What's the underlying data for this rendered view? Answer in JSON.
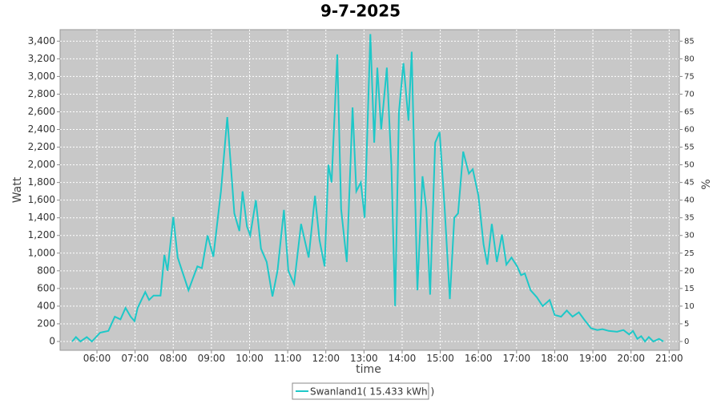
{
  "chart_data": {
    "type": "line",
    "title": "9-7-2025",
    "x_label": "time",
    "y_label": "Watt",
    "y2_label": "%",
    "grid": true,
    "xlim": [
      "05:02",
      "21:16"
    ],
    "xticks": [
      "06:00",
      "07:00",
      "08:00",
      "09:00",
      "10:00",
      "11:00",
      "12:00",
      "13:00",
      "14:00",
      "15:00",
      "16:00",
      "17:00",
      "18:00",
      "19:00",
      "20:00",
      "21:00"
    ],
    "ylim": [
      -100,
      3530
    ],
    "yticks": [
      0,
      200,
      400,
      600,
      800,
      {
        "value": 1000,
        "label": "1,000"
      },
      {
        "value": 1200,
        "label": "1,200"
      },
      {
        "value": 1400,
        "label": "1,400"
      },
      {
        "value": 1600,
        "label": "1,600"
      },
      {
        "value": 1800,
        "label": "1,800"
      },
      {
        "value": 2000,
        "label": "2,000"
      },
      {
        "value": 2200,
        "label": "2,200"
      },
      {
        "value": 2400,
        "label": "2,400"
      },
      {
        "value": 2600,
        "label": "2,600"
      },
      {
        "value": 2800,
        "label": "2,800"
      },
      {
        "value": 3000,
        "label": "3,000"
      },
      {
        "value": 3200,
        "label": "3,200"
      },
      {
        "value": 3400,
        "label": "3,400"
      }
    ],
    "y2lim": [
      -2.5,
      88.25
    ],
    "y2ticks": [
      0,
      5,
      10,
      15,
      20,
      25,
      30,
      35,
      40,
      45,
      50,
      55,
      60,
      65,
      70,
      75,
      80,
      85
    ],
    "x": [
      "05:21",
      "05:27",
      "05:34",
      "05:44",
      "05:52",
      "06:05",
      "06:18",
      "06:28",
      "06:37",
      "06:45",
      "06:53",
      "06:59",
      "07:04",
      "07:16",
      "07:22",
      "07:29",
      "07:40",
      "07:46",
      "07:51",
      "08:00",
      "08:07",
      "08:24",
      "08:38",
      "08:45",
      "08:54",
      "09:03",
      "09:15",
      "09:25",
      "09:36",
      "09:44",
      "09:49",
      "09:56",
      "10:01",
      "10:10",
      "10:18",
      "10:27",
      "10:36",
      "10:44",
      "10:54",
      "11:01",
      "11:10",
      "11:21",
      "11:33",
      "11:43",
      "11:50",
      "11:58",
      "12:04",
      "12:09",
      "12:18",
      "12:24",
      "12:33",
      "12:42",
      "12:48",
      "12:55",
      "13:01",
      "13:10",
      "13:16",
      "13:21",
      "13:27",
      "13:36",
      "13:43",
      "13:49",
      "13:55",
      "14:02",
      "14:10",
      "14:15",
      "14:24",
      "14:32",
      "14:38",
      "14:44",
      "14:52",
      "14:59",
      "15:07",
      "15:15",
      "15:22",
      "15:28",
      "15:36",
      "15:45",
      "15:51",
      "16:00",
      "16:08",
      "16:14",
      "16:21",
      "16:29",
      "16:37",
      "16:44",
      "16:52",
      "17:01",
      "17:07",
      "17:13",
      "17:22",
      "17:32",
      "17:41",
      "17:52",
      "18:00",
      "18:10",
      "18:19",
      "18:28",
      "18:38",
      "18:46",
      "18:57",
      "19:07",
      "19:15",
      "19:25",
      "19:38",
      "19:48",
      "19:57",
      "20:03",
      "20:10",
      "20:16",
      "20:22",
      "20:28",
      "20:35",
      "20:44",
      "20:51"
    ],
    "series": [
      {
        "name": "Swanland1( 15.433 kWh )",
        "color": "#1ec8c8",
        "values": [
          0,
          50,
          0,
          50,
          0,
          100,
          120,
          280,
          250,
          380,
          280,
          230,
          380,
          560,
          470,
          520,
          520,
          980,
          800,
          1410,
          950,
          580,
          850,
          830,
          1200,
          960,
          1700,
          2540,
          1450,
          1250,
          1700,
          1300,
          1200,
          1600,
          1050,
          900,
          510,
          800,
          1490,
          800,
          650,
          1330,
          950,
          1650,
          1150,
          850,
          2000,
          1800,
          3250,
          1500,
          900,
          2650,
          1700,
          1800,
          1400,
          3480,
          2250,
          3100,
          2400,
          3100,
          2000,
          400,
          2600,
          3150,
          2500,
          3280,
          580,
          1870,
          1500,
          530,
          2250,
          2370,
          1500,
          480,
          1400,
          1450,
          2150,
          1900,
          1950,
          1650,
          1100,
          870,
          1330,
          900,
          1210,
          870,
          950,
          850,
          750,
          770,
          580,
          500,
          400,
          470,
          300,
          280,
          350,
          280,
          330,
          250,
          150,
          130,
          140,
          120,
          110,
          130,
          80,
          120,
          30,
          60,
          0,
          50,
          0,
          30,
          0
        ]
      }
    ]
  }
}
